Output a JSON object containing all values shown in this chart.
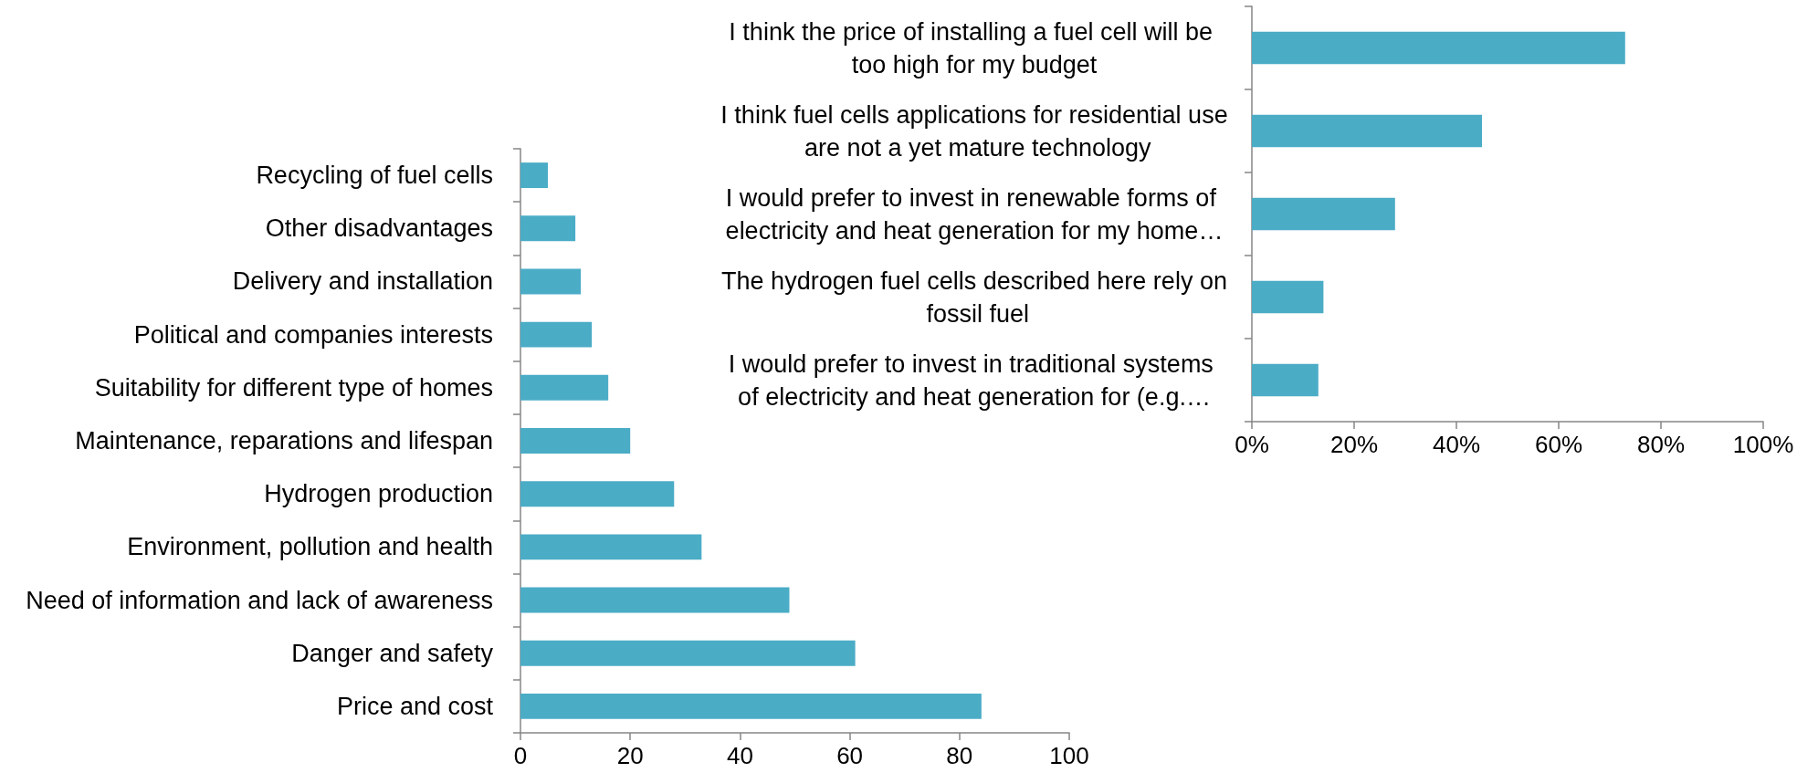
{
  "chart_data": [
    {
      "type": "bar",
      "orientation": "horizontal",
      "categories": [
        "Recycling of fuel cells",
        "Other disadvantages",
        "Delivery and installation",
        "Political and companies interests",
        "Suitability for different type of homes",
        "Maintenance, reparations and lifespan",
        "Hydrogen production",
        "Environment, pollution and health",
        "Need of information and lack of awareness",
        "Danger and safety",
        "Price and cost"
      ],
      "values": [
        5,
        10,
        11,
        13,
        16,
        20,
        28,
        33,
        49,
        61,
        84
      ],
      "color": "#4bacc6",
      "xlim": [
        0,
        100
      ],
      "xticks": [
        0,
        20,
        40,
        60,
        80,
        100
      ]
    },
    {
      "type": "bar",
      "orientation": "horizontal",
      "categories": [
        "I think the price of installing a fuel cell will be too high for my budget",
        "I think fuel cells applications for residential use are not a yet mature technology",
        "I would prefer to invest in renewable forms of electricity and heat generation for my home…",
        "The hydrogen fuel cells described here rely on fossil fuel",
        "I would prefer to invest in traditional systems of electricity and heat generation for (e.g.…"
      ],
      "values": [
        73,
        45,
        28,
        14,
        13
      ],
      "color": "#4bacc6",
      "xlim": [
        0,
        100
      ],
      "xticks": [
        {
          "value": 0,
          "label": "0%"
        },
        {
          "value": 20,
          "label": "20%"
        },
        {
          "value": 40,
          "label": "40%"
        },
        {
          "value": 60,
          "label": "60%"
        },
        {
          "value": 80,
          "label": "80%"
        },
        {
          "value": 100,
          "label": "100%"
        }
      ]
    }
  ]
}
